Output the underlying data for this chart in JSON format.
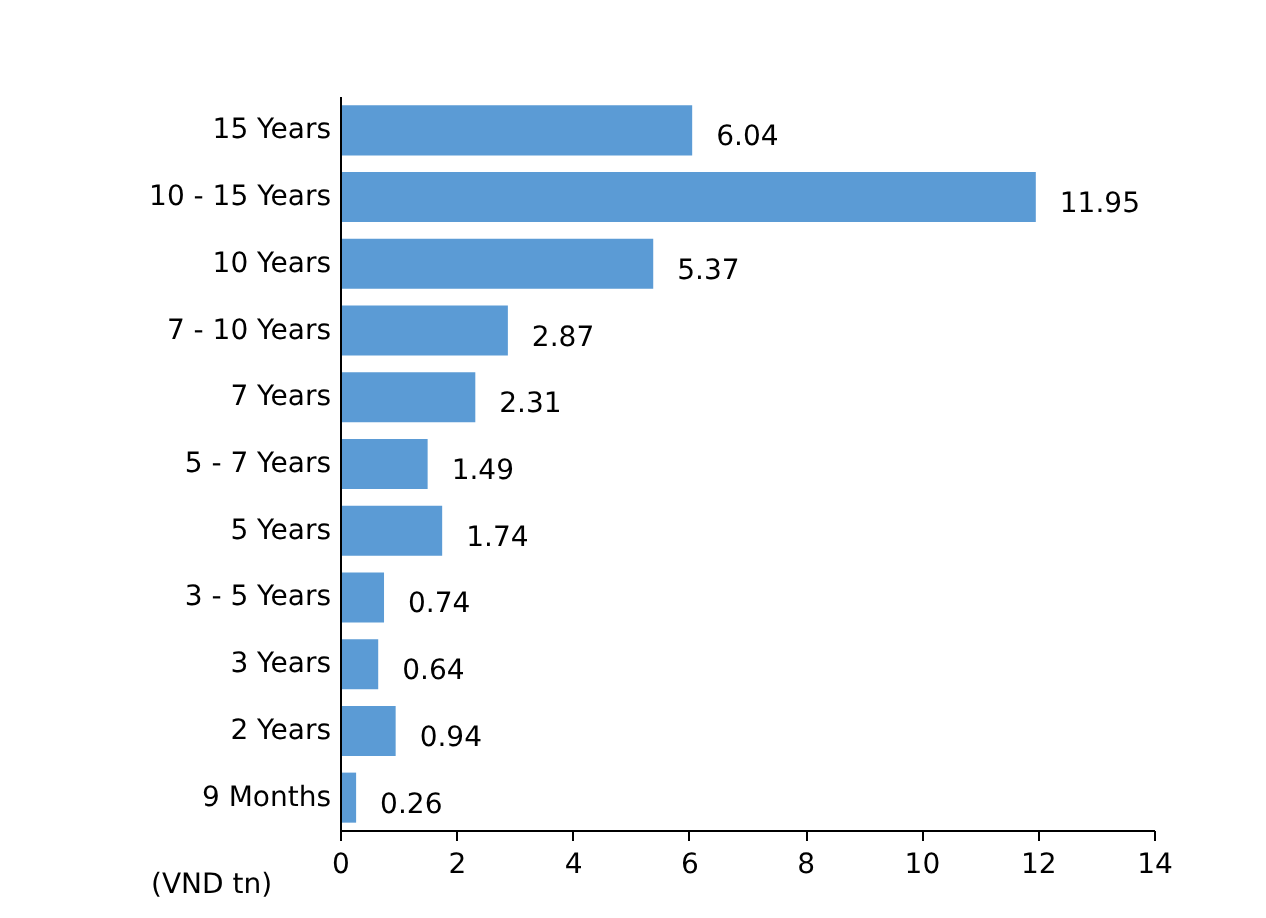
{
  "chart_data": {
    "type": "bar",
    "orientation": "horizontal",
    "categories": [
      "15 Years",
      "10 - 15 Years",
      "10 Years",
      "7 - 10 Years",
      "7 Years",
      "5 - 7 Years",
      "5 Years",
      "3 - 5 Years",
      "3 Years",
      "2 Years",
      "9 Months"
    ],
    "values": [
      6.04,
      11.95,
      5.37,
      2.87,
      2.31,
      1.49,
      1.74,
      0.74,
      0.64,
      0.94,
      0.26
    ],
    "color": "#5b9bd5",
    "data_labels": true,
    "xlabel": "(VND tn)",
    "xlim": [
      0,
      14
    ],
    "xticks": [
      0,
      2,
      4,
      6,
      8,
      10,
      12,
      14
    ],
    "grid": false
  }
}
